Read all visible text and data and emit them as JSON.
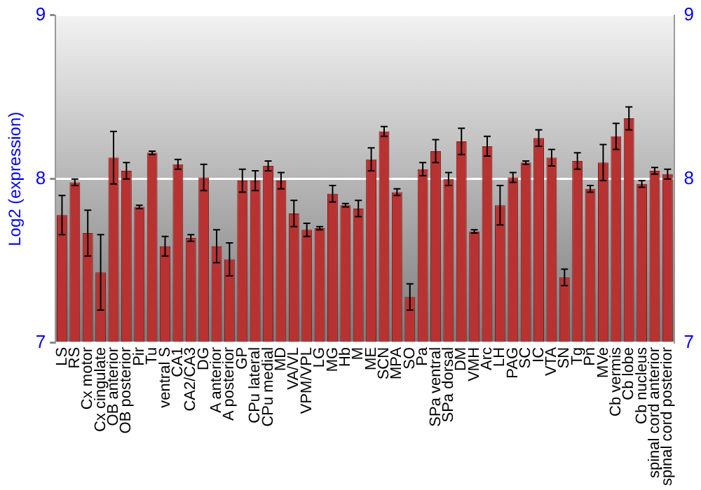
{
  "chart_data": {
    "type": "bar",
    "ylabel": "Log2 (expression)",
    "categories": [
      "LS",
      "RS",
      "Cx motor",
      "Cx cingulate",
      "OB anterior",
      "OB posterior",
      "Pir",
      "Tu",
      "ventral S",
      "CA1",
      "CA2/CA3",
      "DG",
      "A anterior",
      "A posterior",
      "GP",
      "CPu lateral",
      "CPu medial",
      "MD",
      "VA/VL",
      "VPM/VPL",
      "LG",
      "MG",
      "Hb",
      "M",
      "ME",
      "SCN",
      "MPA",
      "SO",
      "Pa",
      "SPa ventral",
      "SPa dorsal",
      "DM",
      "VMH",
      "Arc",
      "LH",
      "PAG",
      "SC",
      "IC",
      "VTA",
      "SN",
      "Tg",
      "Pn",
      "MVe",
      "Cb vermis",
      "Cb lobe",
      "Cb nucleus",
      "spinal cord anterior",
      "spinal cord posterior"
    ],
    "values": [
      7.78,
      7.98,
      7.67,
      7.43,
      8.13,
      8.05,
      7.83,
      8.16,
      7.59,
      8.09,
      7.64,
      8.01,
      7.59,
      7.51,
      7.99,
      7.99,
      8.08,
      7.99,
      7.79,
      7.69,
      7.7,
      7.91,
      7.84,
      7.82,
      8.12,
      8.29,
      7.92,
      7.28,
      8.06,
      8.17,
      8.0,
      8.23,
      7.68,
      8.2,
      7.84,
      8.01,
      8.1,
      8.25,
      8.13,
      7.4,
      8.11,
      7.94,
      8.1,
      8.26,
      8.37,
      7.97,
      8.05,
      8.03
    ],
    "errors": [
      0.12,
      0.02,
      0.14,
      0.23,
      0.16,
      0.05,
      0.01,
      0.01,
      0.06,
      0.03,
      0.02,
      0.08,
      0.1,
      0.1,
      0.07,
      0.06,
      0.03,
      0.05,
      0.08,
      0.04,
      0.01,
      0.05,
      0.01,
      0.05,
      0.07,
      0.03,
      0.02,
      0.08,
      0.04,
      0.07,
      0.04,
      0.08,
      0.01,
      0.06,
      0.12,
      0.03,
      0.01,
      0.05,
      0.05,
      0.05,
      0.05,
      0.02,
      0.11,
      0.08,
      0.07,
      0.02,
      0.02,
      0.03
    ],
    "color": "#b83232",
    "ylim": [
      7,
      9
    ],
    "yticks": [
      7,
      8,
      9
    ],
    "y2lim": [
      7,
      9
    ],
    "y2ticks": [
      7,
      8,
      9
    ],
    "grid": "y"
  }
}
